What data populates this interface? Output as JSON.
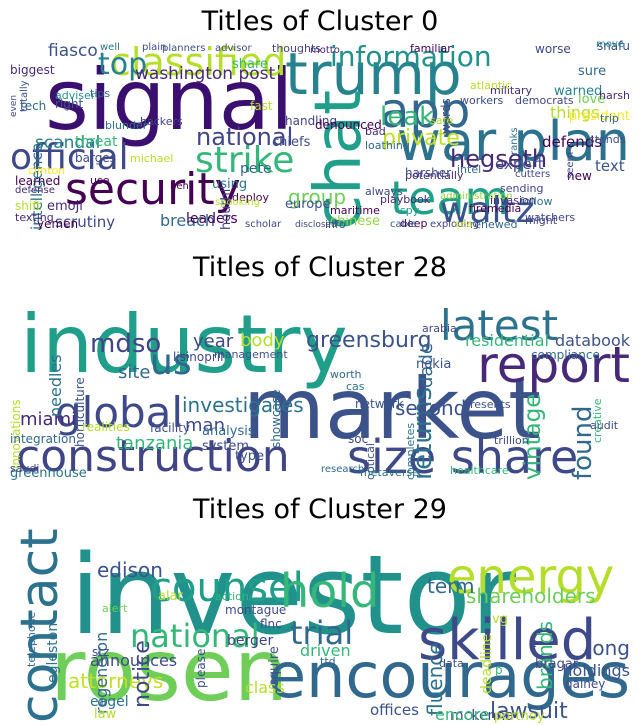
{
  "clusters": [
    {
      "title": "Titles of Cluster 0",
      "words": [
        {
          "text": "signal",
          "color": "#3b0f70"
        },
        {
          "text": "trump",
          "color": "#26828e"
        },
        {
          "text": "war plan",
          "color": "#2c728e"
        },
        {
          "text": "classified",
          "color": "#b5de2b"
        },
        {
          "text": "app",
          "color": "#31688e"
        },
        {
          "text": "official",
          "color": "#3e4989"
        },
        {
          "text": "security",
          "color": "#440154"
        },
        {
          "text": "team",
          "color": "#1fa187"
        },
        {
          "text": "strike",
          "color": "#35b779"
        },
        {
          "text": "waltz",
          "color": "#3b528b"
        },
        {
          "text": "chat",
          "color": "#1f9e89"
        },
        {
          "text": "information",
          "color": "#21918c"
        },
        {
          "text": "hegseth",
          "color": "#482878"
        },
        {
          "text": "top",
          "color": "#26828e"
        },
        {
          "text": "leak",
          "color": "#35b779"
        },
        {
          "text": "private",
          "color": "#c2df23"
        },
        {
          "text": "national",
          "color": "#414487"
        },
        {
          "text": "group",
          "color": "#6ece58"
        },
        {
          "text": "washington post",
          "color": "#482878"
        },
        {
          "text": "scrutiny",
          "color": "#3e4989"
        },
        {
          "text": "breach",
          "color": "#31688e"
        },
        {
          "text": "leaders",
          "color": "#440154"
        },
        {
          "text": "fiasco",
          "color": "#3b528b"
        },
        {
          "text": "intelligence",
          "color": "#2c728e"
        },
        {
          "text": "scandal",
          "color": "#26828e"
        },
        {
          "text": "threat",
          "color": "#35b779"
        },
        {
          "text": "europe",
          "color": "#3b528b"
        },
        {
          "text": "chinese",
          "color": "#90d743"
        },
        {
          "text": "yemen",
          "color": "#440154"
        },
        {
          "text": "emoji",
          "color": "#482878"
        },
        {
          "text": "houthi",
          "color": "#414487"
        },
        {
          "text": "expert",
          "color": "#3e4989"
        },
        {
          "text": "defends",
          "color": "#440154"
        },
        {
          "text": "warned",
          "color": "#26828e"
        },
        {
          "text": "things",
          "color": "#b5de2b"
        },
        {
          "text": "sure",
          "color": "#31688e"
        },
        {
          "text": "text",
          "color": "#3b528b"
        },
        {
          "text": "new",
          "color": "#440154"
        },
        {
          "text": "pete",
          "color": "#31688e"
        },
        {
          "text": "chiefs",
          "color": "#3e4989"
        },
        {
          "text": "share",
          "color": "#35b779"
        },
        {
          "text": "love",
          "color": "#6ece58"
        },
        {
          "text": "snafu",
          "color": "#3b528b"
        },
        {
          "text": "president",
          "color": "#fde725"
        },
        {
          "text": "playbook",
          "color": "#482878"
        },
        {
          "text": "fast",
          "color": "#b5de2b"
        },
        {
          "text": "intel",
          "color": "#31688e"
        },
        {
          "text": "handling",
          "color": "#414487"
        },
        {
          "text": "potentially",
          "color": "#482878"
        },
        {
          "text": "spy",
          "color": "#1f9e89"
        },
        {
          "text": "deep",
          "color": "#440154"
        },
        {
          "text": "renewed",
          "color": "#31688e"
        },
        {
          "text": "watchers",
          "color": "#3e4989"
        },
        {
          "text": "follow",
          "color": "#2c728e"
        },
        {
          "text": "info",
          "color": "#3b528b"
        },
        {
          "text": "texting",
          "color": "#482878"
        },
        {
          "text": "shift",
          "color": "#b5de2b"
        },
        {
          "text": "defense",
          "color": "#482878"
        },
        {
          "text": "using",
          "color": "#2c728e"
        },
        {
          "text": "deploy",
          "color": "#440154"
        },
        {
          "text": "always",
          "color": "#3e4989"
        },
        {
          "text": "michael",
          "color": "#b5de2b"
        },
        {
          "text": "learned",
          "color": "#440154"
        },
        {
          "text": "adviser",
          "color": "#21918c"
        },
        {
          "text": "right",
          "color": "#3b528b"
        },
        {
          "text": "tech",
          "color": "#31688e"
        },
        {
          "text": "biggest",
          "color": "#482878"
        },
        {
          "text": "clinton",
          "color": "#fde725"
        },
        {
          "text": "tips",
          "color": "#31688e"
        },
        {
          "text": "use",
          "color": "#440154"
        },
        {
          "text": "barges",
          "color": "#3e4989"
        },
        {
          "text": "hackers",
          "color": "#414487"
        },
        {
          "text": "blunder",
          "color": "#2c728e"
        },
        {
          "text": "well",
          "color": "#2c728e"
        },
        {
          "text": "plain",
          "color": "#3e4989"
        },
        {
          "text": "planners",
          "color": "#3b528b"
        },
        {
          "text": "advisor",
          "color": "#3e4989"
        },
        {
          "text": "thoughts",
          "color": "#414487"
        },
        {
          "text": "familiar",
          "color": "#440154"
        },
        {
          "text": "worse",
          "color": "#3e4989"
        },
        {
          "text": "move",
          "color": "#26828e"
        },
        {
          "text": "harsh",
          "color": "#482878"
        },
        {
          "text": "trip",
          "color": "#31688e"
        },
        {
          "text": "stands",
          "color": "#3b528b"
        },
        {
          "text": "seem",
          "color": "#3e4989"
        },
        {
          "text": "ranks",
          "color": "#2c728e"
        },
        {
          "text": "cutters",
          "color": "#3e4989"
        },
        {
          "text": "might",
          "color": "#414487"
        },
        {
          "text": "administration",
          "color": "#90d743"
        },
        {
          "text": "sending",
          "color": "#414487"
        },
        {
          "text": "firemedia",
          "color": "#440154"
        },
        {
          "text": "invasion",
          "color": "#482878"
        },
        {
          "text": "democrats",
          "color": "#3e4989"
        },
        {
          "text": "military",
          "color": "#482878"
        },
        {
          "text": "atlantic",
          "color": "#b5de2b"
        },
        {
          "text": "workers",
          "color": "#3e4989"
        },
        {
          "text": "denounced",
          "color": "#440154"
        },
        {
          "text": "bad",
          "color": "#482878"
        },
        {
          "text": "loathing",
          "color": "#31688e"
        },
        {
          "text": "maritime",
          "color": "#440154"
        },
        {
          "text": "cable",
          "color": "#3b528b"
        },
        {
          "text": "exploding",
          "color": "#414487"
        },
        {
          "text": "sea",
          "color": "#c2df23"
        },
        {
          "text": "scholar",
          "color": "#3e4989"
        },
        {
          "text": "spooking",
          "color": "#b5de2b"
        },
        {
          "text": "disclosed",
          "color": "#3e4989"
        },
        {
          "text": "ben",
          "color": "#440154"
        },
        {
          "text": "words",
          "color": "#3e4989"
        },
        {
          "text": "totally",
          "color": "#3b528b"
        },
        {
          "text": "even",
          "color": "#3e4989"
        },
        {
          "text": "motto",
          "color": "#482878"
        },
        {
          "text": "safe",
          "color": "#b5de2b"
        },
        {
          "text": "harsher",
          "color": "#3e4989"
        }
      ]
    },
    {
      "title": "Titles of Cluster 28",
      "words": [
        {
          "text": "market",
          "color": "#3b528b"
        },
        {
          "text": "industry",
          "color": "#1f9e89"
        },
        {
          "text": "construction",
          "color": "#414487"
        },
        {
          "text": "size share",
          "color": "#3e4989"
        },
        {
          "text": "report",
          "color": "#482878"
        },
        {
          "text": "global",
          "color": "#3e4989"
        },
        {
          "text": "latest",
          "color": "#2c728e"
        },
        {
          "text": "us",
          "color": "#31688e"
        },
        {
          "text": "mdso",
          "color": "#414487"
        },
        {
          "text": "greensburg",
          "color": "#3b528b"
        },
        {
          "text": "investigates",
          "color": "#2c728e"
        },
        {
          "text": "site",
          "color": "#31688e"
        },
        {
          "text": "returns",
          "color": "#2c728e"
        },
        {
          "text": "second",
          "color": "#3b528b"
        },
        {
          "text": "found",
          "color": "#31688e"
        },
        {
          "text": "vintage",
          "color": "#35b779"
        },
        {
          "text": "man",
          "color": "#3e4989"
        },
        {
          "text": "miami",
          "color": "#482878"
        },
        {
          "text": "tanzania",
          "color": "#35b779"
        },
        {
          "text": "body",
          "color": "#b5de2b"
        },
        {
          "text": "year",
          "color": "#3e4989"
        },
        {
          "text": "residential",
          "color": "#35b779"
        },
        {
          "text": "databook",
          "color": "#3b528b"
        },
        {
          "text": "dade",
          "color": "#31688e"
        },
        {
          "text": "needles",
          "color": "#2c728e"
        },
        {
          "text": "horticulture",
          "color": "#3b528b"
        },
        {
          "text": "innovations",
          "color": "#b5de2b"
        },
        {
          "text": "integration",
          "color": "#31688e"
        },
        {
          "text": "greenhouse",
          "color": "#2c728e"
        },
        {
          "text": "saudi",
          "color": "#3e4989"
        },
        {
          "text": "realities",
          "color": "#b5de2b"
        },
        {
          "text": "facility",
          "color": "#3e4989"
        },
        {
          "text": "analysis",
          "color": "#31688e"
        },
        {
          "text": "system",
          "color": "#3e4989"
        },
        {
          "text": "type",
          "color": "#3b528b"
        },
        {
          "text": "showcase",
          "color": "#31688e"
        },
        {
          "text": "management",
          "color": "#3b528b"
        },
        {
          "text": "lisinopril",
          "color": "#3e4989"
        },
        {
          "text": "nokia",
          "color": "#3b528b"
        },
        {
          "text": "arabia",
          "color": "#3e4989"
        },
        {
          "text": "compliance",
          "color": "#31688e"
        },
        {
          "text": "network",
          "color": "#3b528b"
        },
        {
          "text": "optical",
          "color": "#3b528b"
        },
        {
          "text": "soc",
          "color": "#3e4989"
        },
        {
          "text": "trillion",
          "color": "#3e4989"
        },
        {
          "text": "metaverse",
          "color": "#2c728e"
        },
        {
          "text": "healthcare",
          "color": "#35b779"
        },
        {
          "text": "research",
          "color": "#31688e"
        },
        {
          "text": "completes",
          "color": "#2c728e"
        },
        {
          "text": "creative",
          "color": "#35b779"
        },
        {
          "text": "presents",
          "color": "#3b528b"
        },
        {
          "text": "audit",
          "color": "#3e4989"
        },
        {
          "text": "cas",
          "color": "#2c728e"
        },
        {
          "text": "worth",
          "color": "#31688e"
        }
      ]
    },
    {
      "title": "Titles of Cluster 29",
      "words": [
        {
          "text": "investor",
          "color": "#21918c"
        },
        {
          "text": "rosen",
          "color": "#6ece58"
        },
        {
          "text": "encourages",
          "color": "#31688e"
        },
        {
          "text": "skilled",
          "color": "#3e4989"
        },
        {
          "text": "counsel",
          "color": "#1f9e89"
        },
        {
          "text": "hold",
          "color": "#35b779"
        },
        {
          "text": "energy",
          "color": "#b5de2b"
        },
        {
          "text": "contact",
          "color": "#2c728e"
        },
        {
          "text": "national",
          "color": "#35b779"
        },
        {
          "text": "trial",
          "color": "#31688e"
        },
        {
          "text": "attorneys",
          "color": "#c2df23"
        },
        {
          "text": "shareholders",
          "color": "#6ece58"
        },
        {
          "text": "notice",
          "color": "#3e4989"
        },
        {
          "text": "edison",
          "color": "#3b528b"
        },
        {
          "text": "term",
          "color": "#31688e"
        },
        {
          "text": "long",
          "color": "#3b528b"
        },
        {
          "text": "fluence",
          "color": "#2c728e"
        },
        {
          "text": "driven",
          "color": "#35b779"
        },
        {
          "text": "brands",
          "color": "#35b779"
        },
        {
          "text": "regeneron",
          "color": "#31688e"
        },
        {
          "text": "holdings",
          "color": "#3b528b"
        },
        {
          "text": "announces",
          "color": "#3e4989"
        },
        {
          "text": "deadline",
          "color": "#b5de2b"
        },
        {
          "text": "berger",
          "color": "#414487"
        },
        {
          "text": "montague",
          "color": "#3e4989"
        },
        {
          "text": "squire",
          "color": "#3b528b"
        },
        {
          "text": "bragar",
          "color": "#3e4989"
        },
        {
          "text": "gainey",
          "color": "#3e4989"
        },
        {
          "text": "lawsuit",
          "color": "#3b528b"
        },
        {
          "text": "mckenna",
          "color": "#414487"
        },
        {
          "text": "encore",
          "color": "#35b779"
        },
        {
          "text": "portnoy",
          "color": "#b5de2b"
        },
        {
          "text": "offices",
          "color": "#3b528b"
        },
        {
          "text": "class",
          "color": "#b5de2b"
        },
        {
          "text": "eagel",
          "color": "#2c728e"
        },
        {
          "text": "law",
          "color": "#b5de2b"
        },
        {
          "text": "egleston",
          "color": "#2c728e"
        },
        {
          "text": "telephone",
          "color": "#31688e"
        },
        {
          "text": "stz",
          "color": "#3e4989"
        },
        {
          "text": "please",
          "color": "#3b528b"
        },
        {
          "text": "alert",
          "color": "#6ece58"
        },
        {
          "text": "alar",
          "color": "#b5de2b"
        },
        {
          "text": "action",
          "color": "#35b779"
        },
        {
          "text": "flnc",
          "color": "#3e4989"
        },
        {
          "text": "ttd",
          "color": "#31688e"
        },
        {
          "text": "data",
          "color": "#3b528b"
        },
        {
          "text": "vg",
          "color": "#b5de2b"
        },
        {
          "text": "p",
          "color": "#35b779"
        },
        {
          "text": "c",
          "color": "#3e4989"
        }
      ]
    }
  ]
}
